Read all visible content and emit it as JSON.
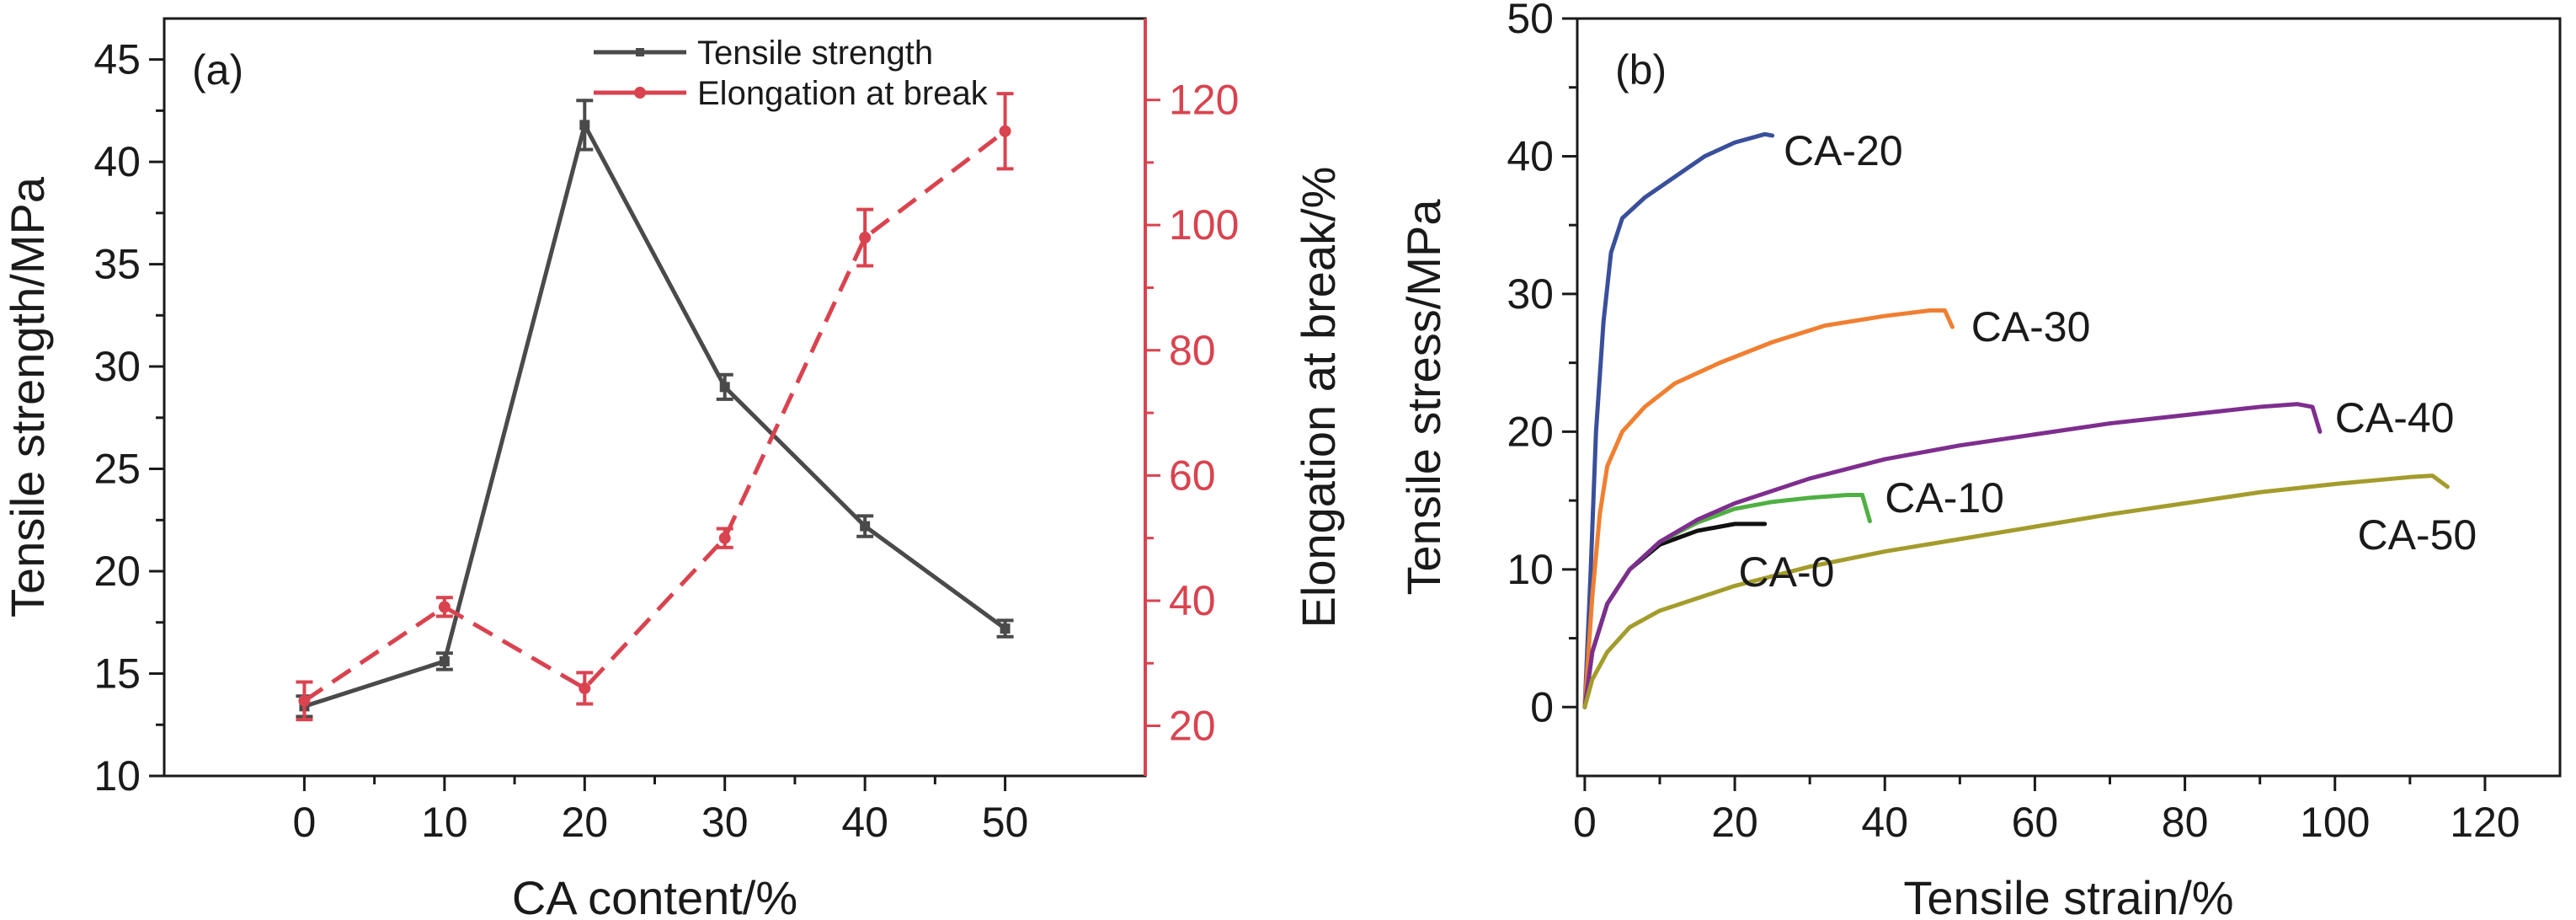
{
  "chart_data": [
    {
      "panel": "(a)",
      "type": "line",
      "xlabel": "CA content/%",
      "x": [
        0,
        10,
        20,
        30,
        40,
        50
      ],
      "xlim": [
        -10,
        60
      ],
      "xticks": [
        0,
        10,
        20,
        30,
        40,
        50
      ],
      "y_left": {
        "label": "Tensile strength/MPa",
        "lim": [
          10,
          47
        ],
        "ticks": [
          10,
          15,
          20,
          25,
          30,
          35,
          40,
          45
        ]
      },
      "y_right": {
        "label": "Elongation at break/%",
        "lim": [
          12,
          133
        ],
        "ticks": [
          20,
          40,
          60,
          80,
          100,
          120
        ]
      },
      "series": [
        {
          "name": "Tensile strength",
          "axis": "left",
          "color": "#4a4a4a",
          "style": "solid",
          "values": [
            13.4,
            15.6,
            41.8,
            29.0,
            22.2,
            17.2
          ],
          "errors": [
            0.5,
            0.4,
            1.2,
            0.6,
            0.5,
            0.4
          ]
        },
        {
          "name": "Elongation at break",
          "axis": "right",
          "color": "#d9434f",
          "style": "dashed",
          "values": [
            24,
            39,
            26,
            50,
            98,
            115
          ],
          "errors": [
            3,
            1.5,
            2.5,
            1.5,
            4.5,
            6
          ]
        }
      ]
    },
    {
      "panel": "(b)",
      "type": "line",
      "xlabel": "Tensile strain/%",
      "ylabel": "Tensile stress/MPa",
      "xlim": [
        -1,
        130
      ],
      "ylim": [
        -5,
        50
      ],
      "xticks": [
        0,
        20,
        40,
        60,
        80,
        100,
        120
      ],
      "yticks": [
        0,
        10,
        20,
        30,
        40,
        50
      ],
      "series": [
        {
          "name": "CA-0",
          "color": "#111111",
          "points": [
            [
              0,
              0
            ],
            [
              1,
              4
            ],
            [
              3,
              7.5
            ],
            [
              6,
              10
            ],
            [
              10,
              11.8
            ],
            [
              15,
              12.8
            ],
            [
              20,
              13.3
            ],
            [
              24,
              13.3
            ]
          ]
        },
        {
          "name": "CA-10",
          "color": "#4fb043",
          "points": [
            [
              0,
              0
            ],
            [
              1,
              4
            ],
            [
              3,
              7.5
            ],
            [
              6,
              10
            ],
            [
              10,
              12
            ],
            [
              15,
              13.4
            ],
            [
              20,
              14.4
            ],
            [
              25,
              14.9
            ],
            [
              30,
              15.2
            ],
            [
              35,
              15.4
            ],
            [
              37,
              15.4
            ],
            [
              38,
              13.5
            ]
          ]
        },
        {
          "name": "CA-20",
          "color": "#3a4f9b",
          "points": [
            [
              0,
              0
            ],
            [
              0.8,
              10
            ],
            [
              1.5,
              20
            ],
            [
              2.5,
              28
            ],
            [
              3.5,
              33
            ],
            [
              5,
              35.5
            ],
            [
              8,
              37
            ],
            [
              12,
              38.5
            ],
            [
              16,
              40
            ],
            [
              20,
              41
            ],
            [
              24,
              41.6
            ],
            [
              25,
              41.5
            ]
          ]
        },
        {
          "name": "CA-30",
          "color": "#f07f31",
          "points": [
            [
              0,
              0
            ],
            [
              1,
              8
            ],
            [
              2,
              14
            ],
            [
              3,
              17.5
            ],
            [
              5,
              20
            ],
            [
              8,
              21.8
            ],
            [
              12,
              23.5
            ],
            [
              18,
              25
            ],
            [
              25,
              26.5
            ],
            [
              32,
              27.7
            ],
            [
              40,
              28.4
            ],
            [
              46,
              28.8
            ],
            [
              48,
              28.8
            ],
            [
              49,
              27.6
            ]
          ]
        },
        {
          "name": "CA-40",
          "color": "#7e2e8e",
          "points": [
            [
              0,
              0
            ],
            [
              1,
              4
            ],
            [
              3,
              7.5
            ],
            [
              6,
              10
            ],
            [
              10,
              12
            ],
            [
              15,
              13.6
            ],
            [
              20,
              14.8
            ],
            [
              30,
              16.6
            ],
            [
              40,
              18
            ],
            [
              50,
              19
            ],
            [
              60,
              19.8
            ],
            [
              70,
              20.6
            ],
            [
              80,
              21.2
            ],
            [
              90,
              21.8
            ],
            [
              95,
              22
            ],
            [
              97,
              21.8
            ],
            [
              98,
              20
            ]
          ]
        },
        {
          "name": "CA-50",
          "color": "#a39c2c",
          "points": [
            [
              0,
              0
            ],
            [
              1,
              2
            ],
            [
              3,
              4
            ],
            [
              6,
              5.8
            ],
            [
              10,
              7
            ],
            [
              20,
              8.8
            ],
            [
              30,
              10.2
            ],
            [
              40,
              11.3
            ],
            [
              50,
              12.2
            ],
            [
              60,
              13.1
            ],
            [
              70,
              14
            ],
            [
              80,
              14.8
            ],
            [
              90,
              15.6
            ],
            [
              100,
              16.2
            ],
            [
              110,
              16.7
            ],
            [
              113,
              16.8
            ],
            [
              115,
              16
            ]
          ]
        }
      ]
    }
  ]
}
